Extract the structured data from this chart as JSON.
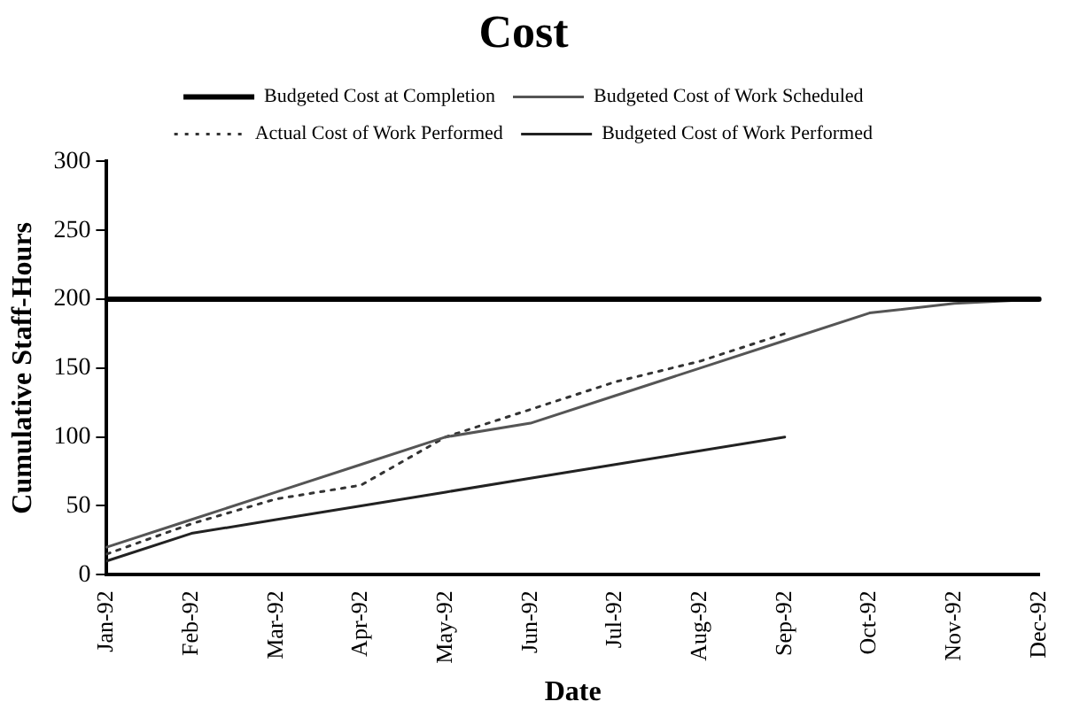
{
  "chart_data": {
    "type": "line",
    "title": "Cost",
    "xlabel": "Date",
    "ylabel": "Cumulative Staff-Hours",
    "categories": [
      "Jan-92",
      "Feb-92",
      "Mar-92",
      "Apr-92",
      "May-92",
      "Jun-92",
      "Jul-92",
      "Aug-92",
      "Sep-92",
      "Oct-92",
      "Nov-92",
      "Dec-92"
    ],
    "series": [
      {
        "name": "Budgeted Cost at Completion",
        "color": "#000000",
        "line_style": "solid",
        "values": [
          200,
          200,
          200,
          200,
          200,
          200,
          200,
          200,
          200,
          200,
          200,
          200
        ]
      },
      {
        "name": "Budgeted Cost of Work Scheduled",
        "color": "#555555",
        "line_style": "solid",
        "values": [
          20,
          40,
          60,
          80,
          100,
          110,
          130,
          150,
          170,
          190,
          197,
          200
        ]
      },
      {
        "name": "Actual Cost of Work Performed",
        "color": "#333333",
        "line_style": "dotted",
        "values": [
          15,
          37,
          55,
          65,
          100,
          120,
          140,
          155,
          175,
          null,
          null,
          null
        ]
      },
      {
        "name": "Budgeted Cost of Work Performed",
        "color": "#222222",
        "line_style": "solid",
        "values": [
          10,
          30,
          40,
          50,
          60,
          70,
          80,
          90,
          100,
          null,
          null,
          null
        ]
      }
    ],
    "ylim": [
      0,
      300
    ],
    "yticks": [
      0,
      50,
      100,
      150,
      200,
      250,
      300
    ],
    "grid": false,
    "legend": "top",
    "marker": "none"
  }
}
